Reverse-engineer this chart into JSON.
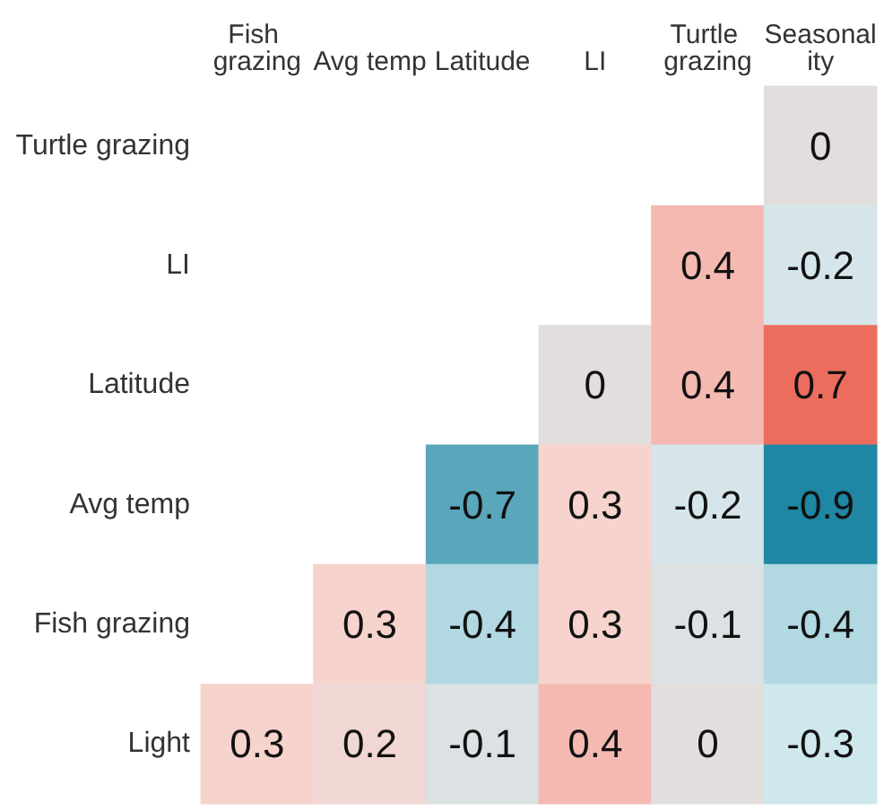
{
  "chart_data": {
    "type": "heatmap",
    "categories": [
      "Fish grazing",
      "Avg temp",
      "Latitude",
      "LI",
      "Turtle grazing",
      "Seasonality"
    ],
    "y_categories": [
      "Turtle grazing",
      "LI",
      "Latitude",
      "Avg temp",
      "Fish grazing",
      "Light"
    ],
    "cells": [
      [
        null,
        null,
        null,
        null,
        null,
        0
      ],
      [
        null,
        null,
        null,
        null,
        0.4,
        -0.2
      ],
      [
        null,
        null,
        null,
        0,
        0.4,
        0.7
      ],
      [
        null,
        null,
        -0.7,
        0.3,
        -0.2,
        -0.9
      ],
      [
        null,
        0.3,
        -0.4,
        0.3,
        -0.1,
        -0.4
      ],
      [
        0.3,
        0.2,
        -0.1,
        0.4,
        0,
        -0.3
      ]
    ],
    "data_labels": true
  }
}
